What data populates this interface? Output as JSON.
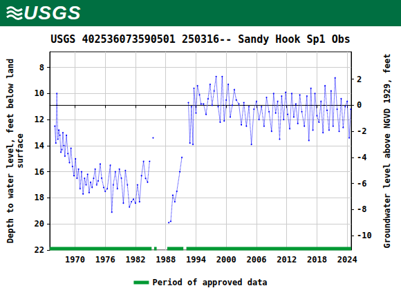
{
  "header": {
    "logo": "USGS"
  },
  "chart_data": {
    "type": "line",
    "title": "USGS 402536073590501 250316-- Sandy Hook Sp1 Obs",
    "x_label": "",
    "y_label": "Depth to water level, feet below land\nsurface",
    "y2_label": "Groundwater level above NGVD 1929, feet",
    "xlim": [
      1965,
      2024.8
    ],
    "xticks": [
      1970,
      1976,
      1982,
      1988,
      1994,
      2000,
      2006,
      2012,
      2018,
      2024
    ],
    "ylim": [
      22,
      6.8
    ],
    "yticks": [
      8,
      10,
      12,
      14,
      16,
      18,
      20,
      22
    ],
    "y2lim": [
      -11.1,
      4.1
    ],
    "y2ticks": [
      -10,
      -8,
      -6,
      -4,
      -2,
      0,
      2
    ],
    "grid": true,
    "legend": "bottom",
    "series": [
      {
        "color": "#0000ff",
        "marker": "circle",
        "line_style": "dotted",
        "x": [
          1966.0,
          1966.2,
          1966.4,
          1966.6,
          1966.8,
          1967.0,
          1967.2,
          1967.4,
          1967.6,
          1967.8,
          1968.0,
          1968.3,
          1968.6,
          1968.9,
          1969.2,
          1969.5,
          1969.8,
          1970.1,
          1970.4,
          1970.7,
          1971.0,
          1971.3,
          1971.6,
          1971.9,
          1972.2,
          1972.5,
          1972.8,
          1973.1,
          1973.4,
          1973.7,
          1974.0,
          1974.3,
          1974.6,
          1975.0,
          1975.3,
          1975.7,
          1976.0,
          1976.4,
          1977.0,
          1977.3,
          1977.6,
          1978.0,
          1978.4,
          1978.8,
          1979.2,
          1979.6,
          1980.0,
          1980.4,
          1980.8,
          1981.2,
          1981.6,
          1982.0,
          1982.4,
          1982.8,
          1983.2,
          1983.6,
          1984.0,
          1984.4,
          1984.8,
          1985.2,
          1985.5,
          1987.0,
          1988.6,
          1989.0,
          1989.4,
          1989.8,
          1990.2,
          1990.8,
          1991.2,
          1991.7,
          1992.5,
          1992.8,
          1993.1,
          1993.4,
          1993.6,
          1994.0,
          1994.3,
          1994.7,
          1995.0,
          1995.5,
          1996.0,
          1996.4,
          1996.8,
          1997.2,
          1997.6,
          1998.0,
          1998.4,
          1998.8,
          1999.2,
          1999.6,
          2000.0,
          2000.4,
          2000.8,
          2001.2,
          2001.6,
          2002.0,
          2002.5,
          2003.0,
          2003.5,
          2004.0,
          2004.5,
          2005.0,
          2005.5,
          2006.0,
          2006.5,
          2007.0,
          2007.5,
          2008.0,
          2008.5,
          2009.0,
          2009.4,
          2009.8,
          2010.2,
          2010.6,
          2011.0,
          2011.4,
          2011.8,
          2012.2,
          2012.6,
          2013.0,
          2013.4,
          2013.8,
          2014.2,
          2014.6,
          2015.0,
          2015.5,
          2016.0,
          2016.4,
          2016.8,
          2017.2,
          2017.6,
          2018.0,
          2018.4,
          2018.8,
          2019.2,
          2019.6,
          2020.0,
          2020.4,
          2020.8,
          2021.2,
          2021.6,
          2022.0,
          2022.4,
          2022.8,
          2023.2,
          2023.6,
          2024.0,
          2024.4,
          2024.7
        ],
        "values": [
          12.5,
          13.8,
          10.0,
          13.5,
          12.8,
          13.2,
          14.5,
          14.3,
          13.0,
          14.0,
          14.8,
          13.2,
          14.6,
          15.3,
          14.2,
          15.6,
          16.3,
          15.0,
          16.5,
          15.8,
          17.3,
          16.0,
          17.7,
          16.5,
          17.0,
          16.2,
          17.6,
          16.8,
          17.2,
          16.5,
          15.8,
          17.0,
          16.7,
          15.4,
          16.5,
          17.2,
          17.5,
          17.3,
          15.5,
          19.1,
          17.0,
          16.0,
          17.3,
          15.8,
          16.5,
          18.4,
          15.9,
          17.0,
          18.7,
          18.3,
          18.1,
          18.4,
          17.0,
          18.3,
          16.3,
          15.2,
          16.5,
          16.8,
          15.2,
          null,
          13.4,
          null,
          19.9,
          19.8,
          17.8,
          18.3,
          17.5,
          16.0,
          14.9,
          null,
          10.7,
          13.8,
          11.0,
          13.9,
          9.6,
          11.5,
          9.4,
          10.1,
          10.8,
          10.8,
          11.6,
          10.4,
          9.3,
          10.9,
          9.8,
          8.7,
          11.0,
          12.2,
          8.7,
          12.1,
          10.5,
          9.3,
          11.8,
          10.9,
          9.7,
          10.5,
          10.8,
          12.4,
          10.7,
          12.5,
          11.0,
          13.9,
          11.2,
          10.6,
          12.0,
          11.0,
          12.5,
          10.3,
          11.4,
          12.9,
          10.0,
          11.5,
          10.6,
          13.5,
          10.2,
          12.0,
          9.9,
          11.6,
          12.7,
          10.0,
          11.8,
          10.8,
          12.3,
          10.1,
          11.4,
          12.5,
          10.2,
          13.6,
          9.6,
          12.8,
          10.0,
          11.7,
          12.2,
          10.6,
          13.0,
          9.4,
          11.3,
          12.8,
          9.8,
          12.5,
          8.8,
          11.2,
          12.9,
          10.4,
          12.6,
          11.0,
          10.6,
          13.4,
          11.2
        ]
      },
      {
        "name": "Period of approved data",
        "color": "#009933",
        "marker": "none",
        "line_style": "solid",
        "x": [
          1965,
          1985.2,
          1985.45,
          1985.7,
          1986.2,
          1987.25,
          1988.3,
          1991.5,
          1991.8,
          1992.1,
          2024.8
        ],
        "values": [
          21.9,
          21.9,
          null,
          21.9,
          21.9,
          null,
          21.9,
          21.9,
          null,
          21.9,
          21.9
        ]
      }
    ]
  }
}
